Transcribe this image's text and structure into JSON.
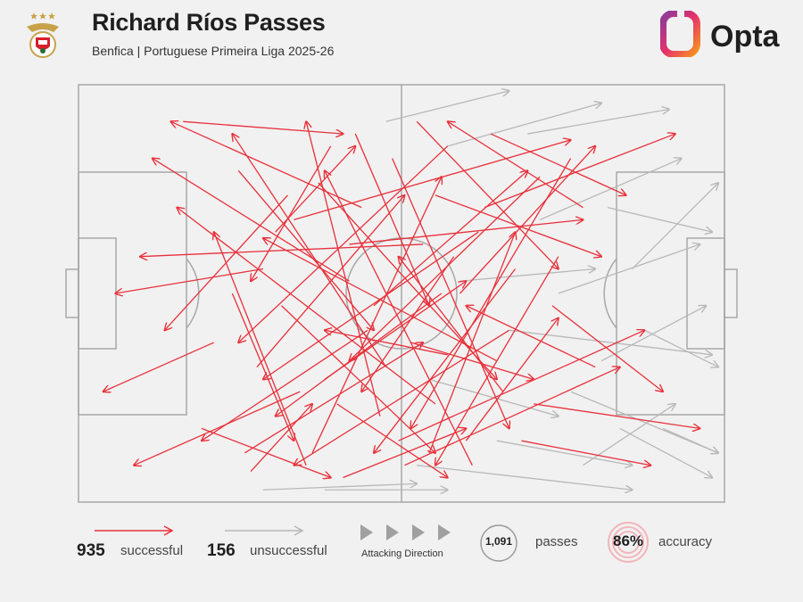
{
  "header": {
    "title": "Richard Ríos Passes",
    "subtitle": "Benfica | Portuguese Primeira Liga 2025-26",
    "brand": "Opta",
    "crest_icon": "benfica-eagle-crest-icon",
    "brand_icon": "opta-logo-icon"
  },
  "colors": {
    "successful": "#e8303a",
    "unsuccessful": "#b8b8b8",
    "pitch_lines": "#a8a8a8",
    "background": "#f1f1f1",
    "accent_orange": "#f7941d",
    "accent_purple": "#8a3a9e"
  },
  "legend": {
    "successful_count": "935",
    "successful_label": "successful",
    "unsuccessful_count": "156",
    "unsuccessful_label": "unsuccessful",
    "direction_label": "Attacking Direction",
    "passes_count": "1,091",
    "passes_label": "passes",
    "accuracy_value": "86%",
    "accuracy_label": "accuracy"
  },
  "chart_data": {
    "type": "pass-map",
    "pitch": {
      "length": 105,
      "width": 68,
      "attacking_direction": "left-to-right"
    },
    "totals": {
      "passes": 1091,
      "successful": 935,
      "unsuccessful": 156,
      "accuracy_pct": 86
    },
    "series": [
      {
        "name": "successful",
        "sample_passes": [
          {
            "x": [
              17,
              43
            ],
            "y": [
              6,
              8
            ]
          },
          {
            "x": [
              28,
              38
            ],
            "y": [
              63,
              52
            ]
          },
          {
            "x": [
              60,
              26
            ],
            "y": [
              10,
              42
            ]
          },
          {
            "x": [
              44,
              12
            ],
            "y": [
              32,
              12
            ]
          },
          {
            "x": [
              70,
              35
            ],
            "y": [
              40,
              62
            ]
          },
          {
            "x": [
              52,
              92
            ],
            "y": [
              58,
              40
            ]
          },
          {
            "x": [
              35,
              80
            ],
            "y": [
              22,
              9
            ]
          },
          {
            "x": [
              58,
              16
            ],
            "y": [
              52,
              20
            ]
          },
          {
            "x": [
              66,
              97
            ],
            "y": [
              20,
              8
            ]
          },
          {
            "x": [
              47,
              20
            ],
            "y": [
              40,
              58
            ]
          },
          {
            "x": [
              40,
              63
            ],
            "y": [
              48,
              32
            ]
          },
          {
            "x": [
              75,
              44
            ],
            "y": [
              15,
              45
            ]
          },
          {
            "x": [
              30,
              6
            ],
            "y": [
              30,
              34
            ]
          },
          {
            "x": [
              55,
              78
            ],
            "y": [
              6,
              30
            ]
          },
          {
            "x": [
              80,
              54
            ],
            "y": [
              12,
              56
            ]
          },
          {
            "x": [
              62,
              84
            ],
            "y": [
              34,
              10
            ]
          },
          {
            "x": [
              22,
              4
            ],
            "y": [
              42,
              50
            ]
          },
          {
            "x": [
              49,
              37
            ],
            "y": [
              54,
              6
            ]
          },
          {
            "x": [
              38,
              59
            ],
            "y": [
              60,
              15
            ]
          },
          {
            "x": [
              68,
              30
            ],
            "y": [
              45,
              25
            ]
          },
          {
            "x": [
              26,
              48
            ],
            "y": [
              14,
              40
            ]
          },
          {
            "x": [
              57,
              71
            ],
            "y": [
              60,
              24
            ]
          },
          {
            "x": [
              44,
              82
            ],
            "y": [
              26,
              22
            ]
          },
          {
            "x": [
              33,
              58
            ],
            "y": [
              36,
              60
            ]
          },
          {
            "x": [
              72,
              93
            ],
            "y": [
              58,
              62
            ]
          },
          {
            "x": [
              46,
              15
            ],
            "y": [
              20,
              6
            ]
          },
          {
            "x": [
              64,
              40
            ],
            "y": [
              62,
              14
            ]
          },
          {
            "x": [
              51,
              70
            ],
            "y": [
              12,
              56
            ]
          },
          {
            "x": [
              36,
              9
            ],
            "y": [
              50,
              62
            ]
          },
          {
            "x": [
              84,
              63
            ],
            "y": [
              46,
              36
            ]
          },
          {
            "x": [
              29,
              53
            ],
            "y": [
              46,
              18
            ]
          },
          {
            "x": [
              61,
              46
            ],
            "y": [
              28,
              50
            ]
          },
          {
            "x": [
              41,
              28
            ],
            "y": [
              10,
              32
            ]
          },
          {
            "x": [
              78,
              58
            ],
            "y": [
              28,
              62
            ]
          },
          {
            "x": [
              54,
              74
            ],
            "y": [
              42,
              48
            ]
          },
          {
            "x": [
              20,
              41
            ],
            "y": [
              56,
              64
            ]
          },
          {
            "x": [
              67,
              89
            ],
            "y": [
              8,
              18
            ]
          },
          {
            "x": [
              43,
              63
            ],
            "y": [
              64,
              56
            ]
          },
          {
            "x": [
              59,
              32
            ],
            "y": [
              34,
              54
            ]
          },
          {
            "x": [
              32,
              45
            ],
            "y": [
              24,
              10
            ]
          },
          {
            "x": [
              74,
              101
            ],
            "y": [
              52,
              56
            ]
          },
          {
            "x": [
              50,
              25
            ],
            "y": [
              46,
              8
            ]
          },
          {
            "x": [
              63,
              78
            ],
            "y": [
              58,
              38
            ]
          },
          {
            "x": [
              39,
              68
            ],
            "y": [
              16,
              48
            ]
          },
          {
            "x": [
              56,
              10
            ],
            "y": [
              26,
              28
            ]
          },
          {
            "x": [
              82,
              60
            ],
            "y": [
              20,
              6
            ]
          },
          {
            "x": [
              25,
              35
            ],
            "y": [
              34,
              58
            ]
          },
          {
            "x": [
              69,
              52
            ],
            "y": [
              50,
              28
            ]
          },
          {
            "x": [
              45,
              57
            ],
            "y": [
              8,
              36
            ]
          },
          {
            "x": [
              53,
              88
            ],
            "y": [
              62,
              46
            ]
          },
          {
            "x": [
              37,
              22
            ],
            "y": [
              62,
              24
            ]
          },
          {
            "x": [
              71,
              48
            ],
            "y": [
              30,
              60
            ]
          },
          {
            "x": [
              48,
              73
            ],
            "y": [
              36,
              14
            ]
          },
          {
            "x": [
              60,
              40
            ],
            "y": [
              44,
              40
            ]
          },
          {
            "x": [
              34,
              14
            ],
            "y": [
              18,
              40
            ]
          },
          {
            "x": [
              77,
              95
            ],
            "y": [
              36,
              50
            ]
          },
          {
            "x": [
              42,
              60
            ],
            "y": [
              52,
              64
            ]
          },
          {
            "x": [
              58,
              85
            ],
            "y": [
              18,
              28
            ]
          },
          {
            "x": [
              27,
              56
            ],
            "y": [
              60,
              42
            ]
          },
          {
            "x": [
              65,
              30
            ],
            "y": [
              24,
              48
            ]
          }
        ]
      },
      {
        "name": "unsuccessful",
        "sample_passes": [
          {
            "x": [
              70,
              103
            ],
            "y": [
              40,
              44
            ]
          },
          {
            "x": [
              80,
              104
            ],
            "y": [
              50,
              60
            ]
          },
          {
            "x": [
              60,
              85
            ],
            "y": [
              10,
              3
            ]
          },
          {
            "x": [
              90,
              104
            ],
            "y": [
              30,
              16
            ]
          },
          {
            "x": [
              55,
              90
            ],
            "y": [
              62,
              66
            ]
          },
          {
            "x": [
              75,
              98
            ],
            "y": [
              22,
              12
            ]
          },
          {
            "x": [
              85,
              102
            ],
            "y": [
              45,
              36
            ]
          },
          {
            "x": [
              68,
              90
            ],
            "y": [
              58,
              62
            ]
          },
          {
            "x": [
              50,
              70
            ],
            "y": [
              6,
              1
            ]
          },
          {
            "x": [
              88,
              103
            ],
            "y": [
              56,
              64
            ]
          },
          {
            "x": [
              78,
              101
            ],
            "y": [
              34,
              26
            ]
          },
          {
            "x": [
              40,
              60
            ],
            "y": [
              66,
              66
            ]
          },
          {
            "x": [
              82,
              97
            ],
            "y": [
              62,
              52
            ]
          },
          {
            "x": [
              92,
              104
            ],
            "y": [
              40,
              46
            ]
          },
          {
            "x": [
              62,
              84
            ],
            "y": [
              32,
              30
            ]
          },
          {
            "x": [
              73,
              96
            ],
            "y": [
              8,
              4
            ]
          },
          {
            "x": [
              86,
              103
            ],
            "y": [
              20,
              24
            ]
          },
          {
            "x": [
              57,
              78
            ],
            "y": [
              48,
              54
            ]
          },
          {
            "x": [
              30,
              55
            ],
            "y": [
              66,
              65
            ]
          },
          {
            "x": [
              95,
              104
            ],
            "y": [
              56,
              60
            ]
          }
        ]
      }
    ]
  }
}
